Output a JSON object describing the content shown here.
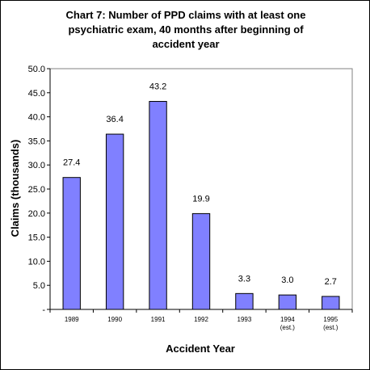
{
  "chart_data": {
    "type": "bar",
    "title_lines": [
      "Chart 7: Number of PPD claims with at least one",
      "psychiatric exam, 40 months after beginning of",
      "accident year"
    ],
    "xlabel": "Accident Year",
    "ylabel": "Claims (thousands)",
    "categories": [
      [
        "1989"
      ],
      [
        "1990"
      ],
      [
        "1991"
      ],
      [
        "1992"
      ],
      [
        "1993"
      ],
      [
        "1994",
        "(est.)"
      ],
      [
        "1995",
        "(est.)"
      ]
    ],
    "values": [
      27.4,
      36.4,
      43.2,
      19.9,
      3.3,
      3.0,
      2.7
    ],
    "data_labels": [
      "27.4",
      "36.4",
      "43.2",
      "19.9",
      "3.3",
      "3.0",
      "2.7"
    ],
    "ylim": [
      0,
      50
    ],
    "yticks": [
      0,
      5,
      10,
      15,
      20,
      25,
      30,
      35,
      40,
      45,
      50
    ],
    "ytick_labels": [
      "-",
      "5.0",
      "10.0",
      "15.0",
      "20.0",
      "25.0",
      "30.0",
      "35.0",
      "40.0",
      "45.0",
      "50.0"
    ],
    "grid": false,
    "legend": "none",
    "bar_color": "#8080ff",
    "bar_edge_color": "#000000"
  }
}
